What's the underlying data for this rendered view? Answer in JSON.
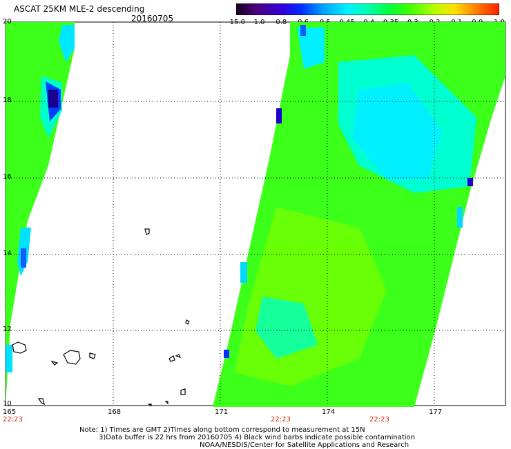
{
  "header": {
    "title": "ASCAT 25KM MLE-2 descending",
    "date": "20160705"
  },
  "colorbar": {
    "labels": [
      "-15.0",
      "-1.0",
      "-0.8",
      "-0.6",
      "-0.5",
      "-0.45",
      "-0.4",
      "-0.35",
      "-0.3",
      "-0.2",
      "-0.1",
      "0.0",
      "1.0"
    ],
    "colors": [
      "#2a0038",
      "#5a00a0",
      "#2200ff",
      "#0070ff",
      "#00b8ff",
      "#00f0ff",
      "#00ffc8",
      "#00ff60",
      "#2cff00",
      "#a0ff00",
      "#f0f000",
      "#ffa000",
      "#ff3000"
    ]
  },
  "axes": {
    "x_ticks": [
      "165",
      "168",
      "171",
      "174",
      "177"
    ],
    "y_ticks": [
      "20",
      "18",
      "16",
      "14",
      "12",
      "10"
    ],
    "times": [
      "22:23",
      "22:23",
      "22:23"
    ]
  },
  "notes": {
    "line1": "Note: 1) Times are GMT 2)Times along bottom correspond to measurement at 15N",
    "line2": "3)Data buffer is 22 hrs from 20160705 4) Black wind barbs indicate possible contamination",
    "line3": "NOAA/NESDIS/Center for Satellite Applications and Research"
  }
}
